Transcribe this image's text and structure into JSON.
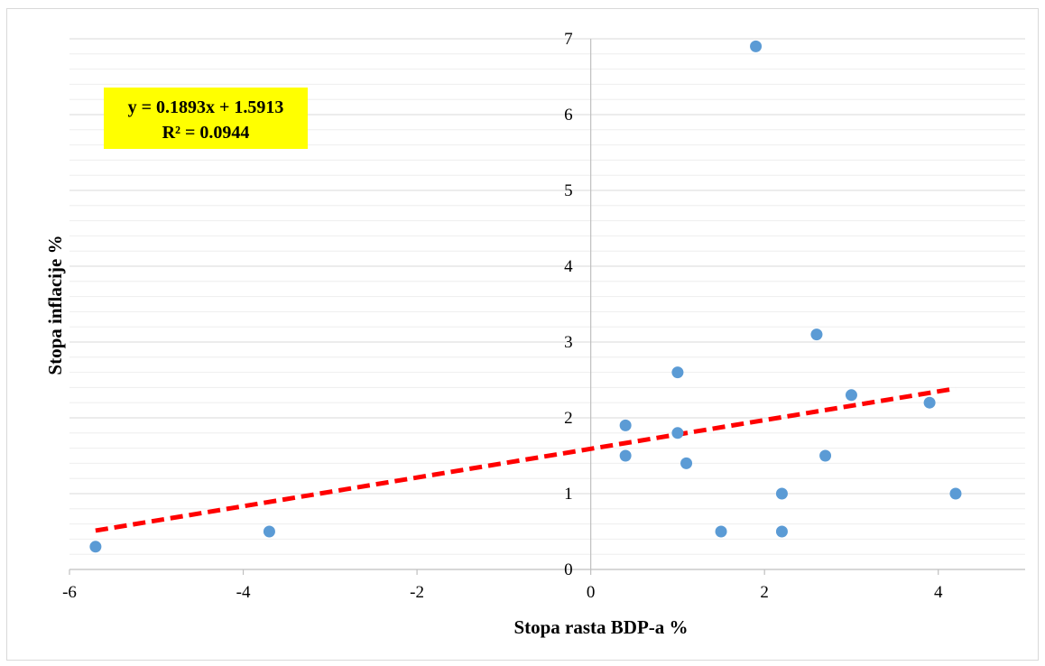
{
  "chart_data": {
    "type": "scatter",
    "title": "",
    "xlabel": "Stopa rasta BDP-a %",
    "ylabel": "Stopa inflacije %",
    "xlim": [
      -6,
      5
    ],
    "ylim": [
      0,
      7
    ],
    "x_ticks": [
      -6,
      -4,
      -2,
      0,
      2,
      4
    ],
    "y_ticks": [
      0,
      1,
      2,
      3,
      4,
      5,
      6,
      7
    ],
    "y_minor_step": 0.2,
    "grid": true,
    "points": [
      {
        "x": -5.7,
        "y": 0.3
      },
      {
        "x": -3.7,
        "y": 0.5
      },
      {
        "x": 0.4,
        "y": 1.9
      },
      {
        "x": 0.4,
        "y": 1.5
      },
      {
        "x": 1.0,
        "y": 2.6
      },
      {
        "x": 1.0,
        "y": 1.8
      },
      {
        "x": 1.1,
        "y": 1.4
      },
      {
        "x": 1.5,
        "y": 0.5
      },
      {
        "x": 1.9,
        "y": 6.9
      },
      {
        "x": 2.2,
        "y": 1.0
      },
      {
        "x": 2.2,
        "y": 0.5
      },
      {
        "x": 2.6,
        "y": 3.1
      },
      {
        "x": 2.7,
        "y": 1.5
      },
      {
        "x": 3.0,
        "y": 2.3
      },
      {
        "x": 3.9,
        "y": 2.2
      },
      {
        "x": 4.2,
        "y": 1.0
      }
    ],
    "trendline": {
      "slope": 0.1893,
      "intercept": 1.5913,
      "x_range": [
        -5.7,
        4.2
      ],
      "equation": "y = 0.1893x + 1.5913",
      "r_squared": "R² = 0.0944"
    },
    "colors": {
      "points": "#5b9bd5",
      "trendline": "#ff0000",
      "equation_bg": "#ffff00",
      "gridline": "#d9d9d9",
      "minor_gridline": "#eeeeee",
      "axis": "#bfbfbf"
    }
  }
}
